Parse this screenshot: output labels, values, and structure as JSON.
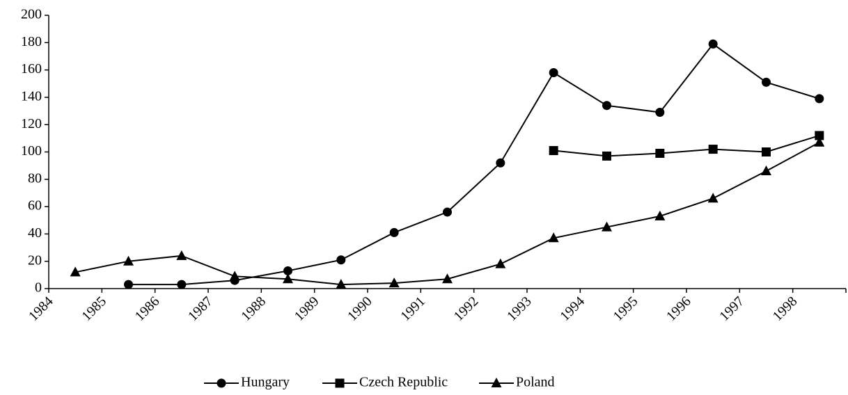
{
  "chart_data": {
    "type": "line",
    "categories": [
      "1984",
      "1985",
      "1986",
      "1987",
      "1988",
      "1989",
      "1990",
      "1991",
      "1992",
      "1993",
      "1994",
      "1995",
      "1996",
      "1997",
      "1998"
    ],
    "series": [
      {
        "name": "Hungary",
        "color": "#000000",
        "marker": "circle",
        "values": [
          null,
          3,
          3,
          6,
          13,
          21,
          41,
          56,
          92,
          158,
          134,
          129,
          179,
          151,
          139
        ]
      },
      {
        "name": "Czech Republic",
        "color": "#000000",
        "marker": "square",
        "values": [
          null,
          null,
          null,
          null,
          null,
          null,
          null,
          null,
          null,
          101,
          97,
          99,
          102,
          100,
          112
        ]
      },
      {
        "name": "Poland",
        "color": "#000000",
        "marker": "triangle",
        "values": [
          12,
          20,
          24,
          9,
          7,
          3,
          4,
          7,
          18,
          37,
          45,
          53,
          66,
          86,
          107
        ]
      }
    ],
    "ylim": [
      0,
      200
    ],
    "yticks": [
      0,
      20,
      40,
      60,
      80,
      100,
      120,
      140,
      160,
      180,
      200
    ],
    "grid": false,
    "legend": "bottom"
  }
}
